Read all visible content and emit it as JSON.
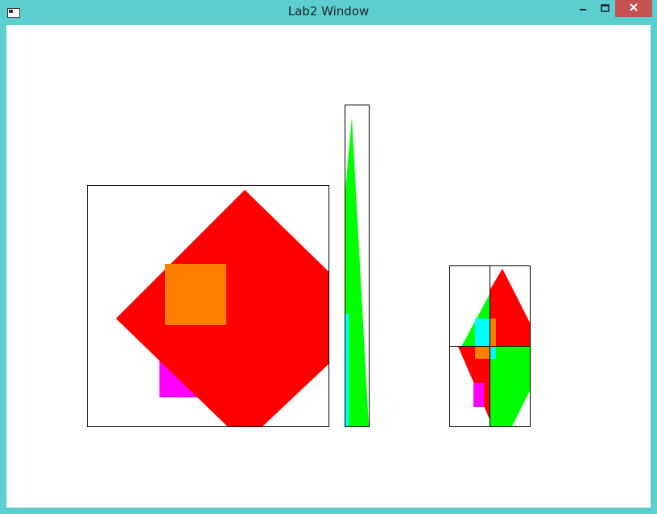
{
  "window": {
    "title": "Lab2 Window",
    "frame_color": "#5bcfcf",
    "close_color": "#c75050"
  },
  "buttons": {
    "minimize": "minimize-icon",
    "maximize": "maximize-icon",
    "close": "close-icon"
  },
  "scene": {
    "colors": {
      "red": "#ff0000",
      "orange": "#ff7f00",
      "magenta": "#ff00ff",
      "green": "#00ff00",
      "cyan": "#00ffff",
      "border": "#000000"
    }
  }
}
